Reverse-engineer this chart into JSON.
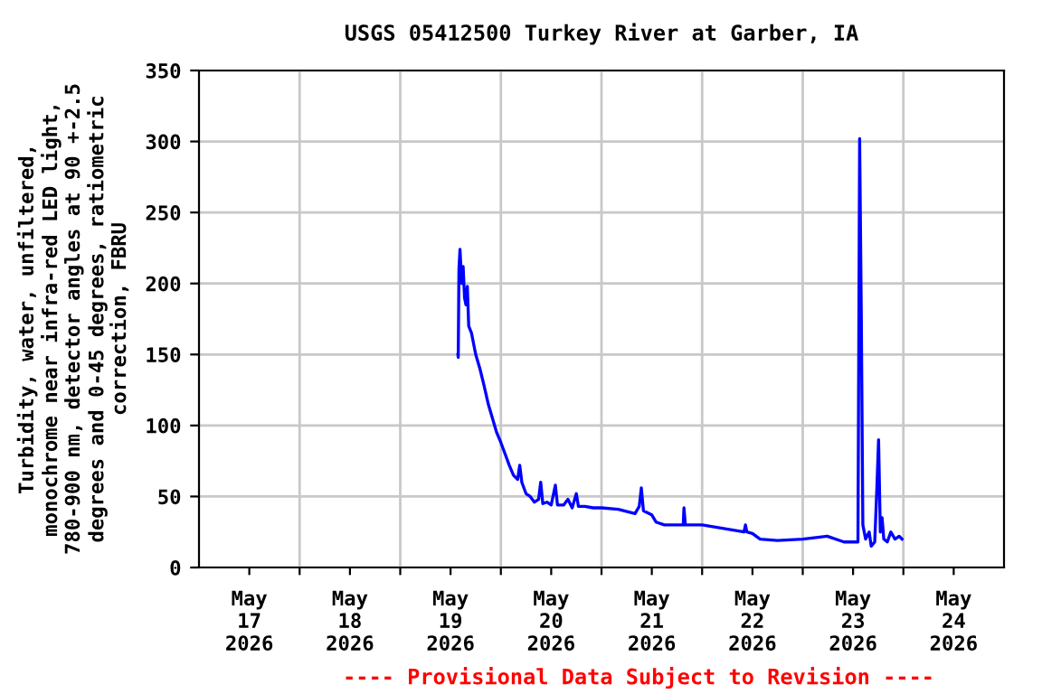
{
  "chart_data": {
    "type": "line",
    "title": "USGS 05412500 Turkey River at Garber, IA",
    "ylabel": "Turbidity, water, unfiltered,\nmonochrome near infra-red LED light,\n780-900 nm, detector angles at 90 +-2.5\ndegrees and 0-45 degrees, ratiometric\ncorrection, FBRU",
    "annotations": [
      "---- Provisional Data Subject to Revision ----"
    ],
    "xlim": [
      "2026-05-17",
      "2026-05-25"
    ],
    "xticks": [
      {
        "value": "2026-05-17T12:00",
        "label": "May\n17\n2026"
      },
      {
        "value": "2026-05-18T12:00",
        "label": "May\n18\n2026"
      },
      {
        "value": "2026-05-19T12:00",
        "label": "May\n19\n2026"
      },
      {
        "value": "2026-05-20T12:00",
        "label": "May\n20\n2026"
      },
      {
        "value": "2026-05-21T12:00",
        "label": "May\n21\n2026"
      },
      {
        "value": "2026-05-22T12:00",
        "label": "May\n22\n2026"
      },
      {
        "value": "2026-05-23T12:00",
        "label": "May\n23\n2026"
      },
      {
        "value": "2026-05-24T12:00",
        "label": "May\n24\n2026"
      },
      {
        "value": "2026-05-18",
        "label": null
      },
      {
        "value": "2026-05-19",
        "label": null
      },
      {
        "value": "2026-05-20",
        "label": null
      },
      {
        "value": "2026-05-21",
        "label": null
      },
      {
        "value": "2026-05-22",
        "label": null
      },
      {
        "value": "2026-05-23",
        "label": null
      },
      {
        "value": "2026-05-24",
        "label": null
      }
    ],
    "ylim": [
      0,
      350
    ],
    "yticks": [
      0,
      50,
      100,
      150,
      200,
      250,
      300,
      350
    ],
    "grid": true,
    "legend": false,
    "series": [
      {
        "color": "#0000ff",
        "x": [
          "2026-05-19T13:45",
          "2026-05-19T13:50",
          "2026-05-19T14:00",
          "2026-05-19T14:15",
          "2026-05-19T14:40",
          "2026-05-19T15:00",
          "2026-05-19T15:20",
          "2026-05-19T15:40",
          "2026-05-19T16:00",
          "2026-05-19T16:20",
          "2026-05-19T17:00",
          "2026-05-19T18:00",
          "2026-05-19T19:00",
          "2026-05-19T20:00",
          "2026-05-19T21:00",
          "2026-05-19T22:00",
          "2026-05-19T23:00",
          "2026-05-20T00:00",
          "2026-05-20T01:00",
          "2026-05-20T02:00",
          "2026-05-20T03:00",
          "2026-05-20T04:00",
          "2026-05-20T04:30",
          "2026-05-20T05:00",
          "2026-05-20T06:00",
          "2026-05-20T07:00",
          "2026-05-20T08:00",
          "2026-05-20T09:00",
          "2026-05-20T09:30",
          "2026-05-20T10:00",
          "2026-05-20T11:00",
          "2026-05-20T12:00",
          "2026-05-20T13:00",
          "2026-05-20T13:30",
          "2026-05-20T15:00",
          "2026-05-20T16:00",
          "2026-05-20T17:00",
          "2026-05-20T18:00",
          "2026-05-20T18:30",
          "2026-05-20T20:00",
          "2026-05-20T22:00",
          "2026-05-21T00:00",
          "2026-05-21T04:00",
          "2026-05-21T08:00",
          "2026-05-21T09:00",
          "2026-05-21T09:30",
          "2026-05-21T10:00",
          "2026-05-21T12:00",
          "2026-05-21T13:00",
          "2026-05-21T15:00",
          "2026-05-21T19:30",
          "2026-05-21T19:40",
          "2026-05-21T20:00",
          "2026-05-22T00:00",
          "2026-05-22T10:00",
          "2026-05-22T10:20",
          "2026-05-22T10:40",
          "2026-05-22T12:00",
          "2026-05-22T13:50",
          "2026-05-22T18:00",
          "2026-05-23T00:00",
          "2026-05-23T05:50",
          "2026-05-23T09:50",
          "2026-05-23T13:10",
          "2026-05-23T13:34",
          "2026-05-23T13:58",
          "2026-05-23T14:20",
          "2026-05-23T15:00",
          "2026-05-23T15:50",
          "2026-05-23T16:20",
          "2026-05-23T17:10",
          "2026-05-23T17:40",
          "2026-05-23T18:05",
          "2026-05-23T18:30",
          "2026-05-23T18:55",
          "2026-05-23T19:20",
          "2026-05-23T20:10",
          "2026-05-23T21:00",
          "2026-05-23T22:00",
          "2026-05-23T23:00",
          "2026-05-23T23:40"
        ],
        "values": [
          150,
          148,
          210,
          224,
          200,
          212,
          190,
          185,
          198,
          170,
          165,
          150,
          140,
          128,
          115,
          105,
          95,
          88,
          80,
          72,
          65,
          62,
          72,
          60,
          52,
          50,
          46,
          48,
          60,
          45,
          46,
          44,
          58,
          44,
          44,
          48,
          42,
          52,
          43,
          43,
          42,
          42,
          41,
          38,
          43,
          56,
          40,
          37,
          32,
          30,
          30,
          42,
          30,
          30,
          25,
          30,
          25,
          24,
          20,
          19,
          20,
          22,
          18,
          18,
          302,
          175,
          30,
          20,
          25,
          15,
          18,
          55,
          90,
          25,
          35,
          20,
          18,
          25,
          20,
          22,
          20
        ]
      }
    ]
  }
}
